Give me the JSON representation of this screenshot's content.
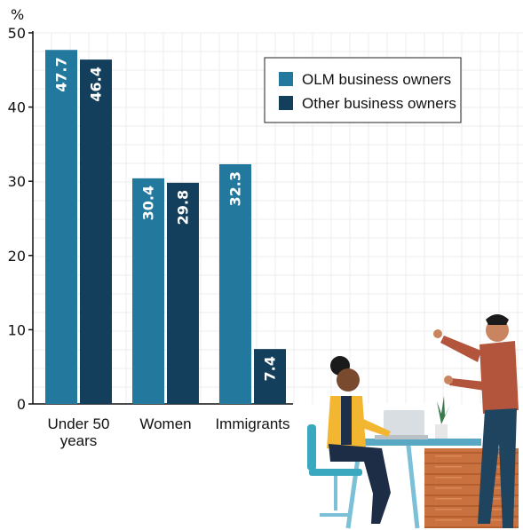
{
  "chart_data": {
    "type": "bar",
    "unit_label": "%",
    "categories": [
      {
        "lines": [
          "Under 50",
          "years"
        ]
      },
      {
        "lines": [
          "Women"
        ]
      },
      {
        "lines": [
          "Immigrants"
        ]
      }
    ],
    "series": [
      {
        "name": "OLM business owners",
        "color": "#23789e",
        "values": [
          47.7,
          30.4,
          32.3
        ],
        "labels": [
          "47.7",
          "30.4",
          "32.3"
        ]
      },
      {
        "name": "Other business owners",
        "color": "#143f5c",
        "values": [
          46.4,
          29.8,
          7.4
        ],
        "labels": [
          "46.4",
          "29.8",
          "7.4"
        ]
      }
    ],
    "ylim": [
      0,
      50
    ],
    "yticks": [
      "0",
      "10",
      "20",
      "30",
      "40",
      "50"
    ],
    "grid": true,
    "legend_position": "top-right"
  }
}
